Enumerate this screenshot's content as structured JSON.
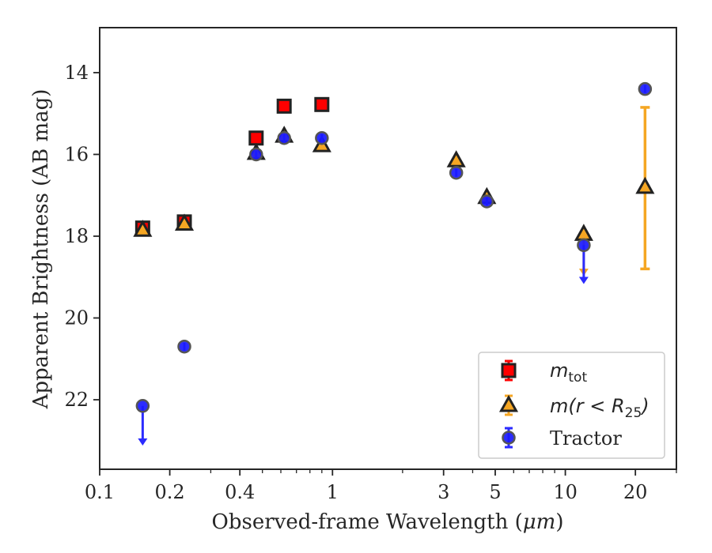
{
  "chart_data": {
    "type": "scatter",
    "xlabel": "Observed-frame Wavelength (",
    "xlabel_unit": "μm",
    "xlabel_close": ")",
    "ylabel": "Apparent Brightness (AB mag)",
    "x_scale": "log",
    "xlim": [
      0.1,
      30
    ],
    "ylim": [
      23.7,
      12.9
    ],
    "y_inverted": true,
    "x_ticks": [
      {
        "value": 0.1,
        "label": "0.1"
      },
      {
        "value": 0.2,
        "label": "0.2"
      },
      {
        "value": 0.4,
        "label": "0.4"
      },
      {
        "value": 1,
        "label": "1"
      },
      {
        "value": 3,
        "label": "3"
      },
      {
        "value": 5,
        "label": "5"
      },
      {
        "value": 10,
        "label": "10"
      },
      {
        "value": 20,
        "label": "20"
      }
    ],
    "y_ticks": [
      {
        "value": 14,
        "label": "14"
      },
      {
        "value": 16,
        "label": "16"
      },
      {
        "value": 18,
        "label": "18"
      },
      {
        "value": 20,
        "label": "20"
      },
      {
        "value": 22,
        "label": "22"
      }
    ],
    "grid": false,
    "legend_position": "bottom-right",
    "series": [
      {
        "key": "mtot",
        "legend_base": "m",
        "legend_sub": "tot",
        "legend_rest": "",
        "marker": "square",
        "color": "#ff0000",
        "edge_color": "#222222",
        "error_color": "#ff0000",
        "points": [
          {
            "x": 0.153,
            "y": 17.8
          },
          {
            "x": 0.231,
            "y": 17.65
          },
          {
            "x": 0.47,
            "y": 15.6
          },
          {
            "x": 0.62,
            "y": 14.82
          },
          {
            "x": 0.9,
            "y": 14.78
          }
        ]
      },
      {
        "key": "mr25",
        "legend_base": "m(r < R",
        "legend_sub": "25",
        "legend_rest": ")",
        "marker": "triangle",
        "color": "#f5a623",
        "edge_color": "#222222",
        "error_color": "#f5a623",
        "points": [
          {
            "x": 0.153,
            "y": 17.85
          },
          {
            "x": 0.231,
            "y": 17.7
          },
          {
            "x": 0.47,
            "y": 15.97
          },
          {
            "x": 0.62,
            "y": 15.55
          },
          {
            "x": 0.9,
            "y": 15.78
          },
          {
            "x": 3.4,
            "y": 16.15
          },
          {
            "x": 4.6,
            "y": 17.05
          },
          {
            "x": 12.0,
            "y": 17.95,
            "upper_limit": true,
            "limit_to": 18.95
          },
          {
            "x": 22.0,
            "y": 16.8,
            "err_lo": 14.85,
            "err_hi": 18.8
          }
        ]
      },
      {
        "key": "tractor",
        "legend_base": "Tractor",
        "legend_sub": "",
        "legend_rest": "",
        "marker": "circle",
        "color": "#1a1aff",
        "edge_color": "#555555",
        "error_color": "#2b2bff",
        "points": [
          {
            "x": 0.153,
            "y": 22.15,
            "upper_limit": true,
            "limit_to": 23.1
          },
          {
            "x": 0.231,
            "y": 20.7
          },
          {
            "x": 0.47,
            "y": 16.0
          },
          {
            "x": 0.62,
            "y": 15.6
          },
          {
            "x": 0.9,
            "y": 15.6
          },
          {
            "x": 3.4,
            "y": 16.45
          },
          {
            "x": 4.6,
            "y": 17.15
          },
          {
            "x": 12.0,
            "y": 18.22,
            "upper_limit": true,
            "limit_to": 19.15
          },
          {
            "x": 22.0,
            "y": 14.4
          }
        ]
      }
    ]
  }
}
